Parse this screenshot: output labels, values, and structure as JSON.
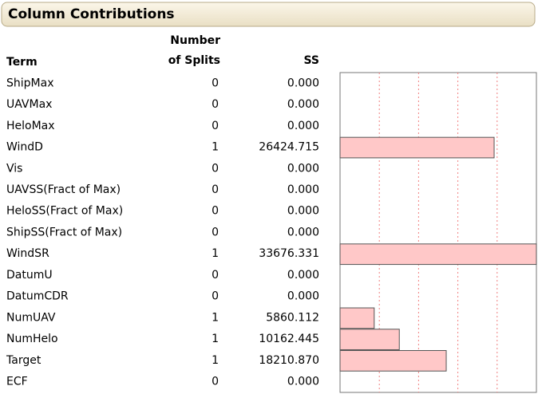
{
  "chart_data": {
    "type": "bar",
    "title": "Column Contributions",
    "columns": [
      "Term",
      "Number",
      "of Splits",
      "SS"
    ],
    "categories": [
      "ShipMax",
      "UAVMax",
      "HeloMax",
      "WindD",
      "Vis",
      "UAVSS(Fract of Max)",
      "HeloSS(Fract of Max)",
      "ShipSS(Fract of Max)",
      "WindSR",
      "DatumU",
      "DatumCDR",
      "NumUAV",
      "NumHelo",
      "Target",
      "ECF"
    ],
    "splits": [
      0,
      0,
      0,
      1,
      0,
      0,
      0,
      0,
      1,
      0,
      0,
      1,
      1,
      1,
      0
    ],
    "values": [
      0,
      0,
      0,
      26424.715,
      0,
      0,
      0,
      0,
      33676.331,
      0,
      0,
      5860.112,
      10162.445,
      18210.87,
      0
    ],
    "value_labels": [
      "0.000",
      "0.000",
      "0.000",
      "26424.715",
      "0.000",
      "0.000",
      "0.000",
      "0.000",
      "33676.331",
      "0.000",
      "0.000",
      "5860.112",
      "10162.445",
      "18210.870",
      "0.000"
    ],
    "color": "#ffc8c8",
    "xlim": [
      0,
      33676.331
    ],
    "xticks": [
      6735.266,
      13470.532,
      20205.799,
      26941.065
    ],
    "grid": true
  }
}
